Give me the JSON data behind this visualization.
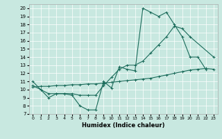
{
  "xlabel": "Humidex (Indice chaleur)",
  "xlim": [
    -0.5,
    23.5
  ],
  "ylim": [
    7,
    20.5
  ],
  "yticks": [
    7,
    8,
    9,
    10,
    11,
    12,
    13,
    14,
    15,
    16,
    17,
    18,
    19,
    20
  ],
  "xticks": [
    0,
    1,
    2,
    3,
    4,
    5,
    6,
    7,
    8,
    9,
    10,
    11,
    12,
    13,
    14,
    15,
    16,
    17,
    18,
    19,
    20,
    21,
    22,
    23
  ],
  "bg_color": "#c8e8e0",
  "line_color": "#1a6b5a",
  "line1_x": [
    0,
    1,
    2,
    3,
    4,
    5,
    6,
    7,
    8,
    9,
    10,
    11,
    12,
    13,
    14,
    15,
    16,
    17,
    18,
    19,
    20,
    21,
    22
  ],
  "line1_y": [
    11.0,
    10.0,
    9.0,
    9.5,
    9.5,
    9.3,
    8.0,
    7.5,
    7.5,
    11.0,
    10.2,
    12.8,
    12.5,
    12.3,
    20.0,
    19.5,
    19.0,
    19.5,
    18.0,
    16.5,
    14.0,
    14.0,
    12.5
  ],
  "line2_x": [
    0,
    1,
    2,
    3,
    4,
    5,
    6,
    7,
    8,
    9,
    10,
    11,
    12,
    13,
    14,
    15,
    16,
    17,
    18,
    19,
    20,
    21,
    22,
    23
  ],
  "line2_y": [
    10.3,
    10.4,
    10.4,
    10.5,
    10.5,
    10.6,
    10.6,
    10.7,
    10.7,
    10.8,
    10.9,
    11.0,
    11.1,
    11.2,
    11.3,
    11.4,
    11.6,
    11.8,
    12.0,
    12.2,
    12.4,
    12.5,
    12.6,
    12.5
  ],
  "line3_x": [
    0,
    1,
    2,
    3,
    4,
    5,
    6,
    7,
    8,
    9,
    10,
    11,
    12,
    13,
    14,
    15,
    16,
    17,
    18,
    19,
    20,
    23
  ],
  "line3_y": [
    10.5,
    10.0,
    9.5,
    9.5,
    9.5,
    9.5,
    9.3,
    9.3,
    9.3,
    10.5,
    11.5,
    12.5,
    13.0,
    13.0,
    13.5,
    14.5,
    15.5,
    16.5,
    17.8,
    17.5,
    16.5,
    14.0
  ]
}
